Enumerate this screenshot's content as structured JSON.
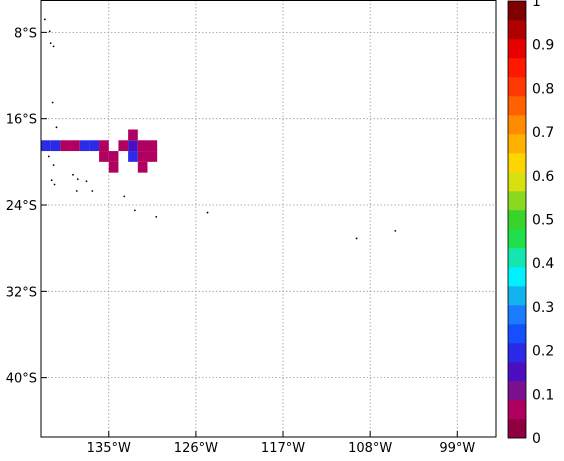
{
  "chart_data": {
    "type": "heatmap",
    "x_axis": {
      "ticks": [
        "135°W",
        "126°W",
        "117°W",
        "108°W",
        "99°W"
      ],
      "values": [
        -135,
        -126,
        -117,
        -108,
        -99
      ],
      "range": [
        -142,
        -95
      ]
    },
    "y_axis": {
      "ticks": [
        "8°S",
        "16°S",
        "24°S",
        "32°S",
        "40°S"
      ],
      "values": [
        -8,
        -16,
        -24,
        -32,
        -40
      ],
      "range": [
        -45.5,
        -5
      ]
    },
    "grid": true,
    "colorbar": {
      "placement": "right",
      "range": [
        0,
        1
      ],
      "tick_labels": [
        "1",
        "0.9",
        "0.8",
        "0.7",
        "0.6",
        "0.5",
        "0.4",
        "0.3",
        "0.2",
        "0.1",
        "0"
      ],
      "tick_values": [
        1,
        0.9,
        0.8,
        0.7,
        0.6,
        0.5,
        0.4,
        0.3,
        0.2,
        0.1,
        0
      ],
      "colors": [
        "#8f0040",
        "#b00060",
        "#7a1090",
        "#4b0fc0",
        "#2b2ae6",
        "#1550ff",
        "#1a7cff",
        "#13b3f0",
        "#00f0ff",
        "#15e6b0",
        "#1fe04a",
        "#38d42a",
        "#8ad820",
        "#d8e010",
        "#ffd400",
        "#ffb000",
        "#ff8c00",
        "#ff6000",
        "#ff3a00",
        "#ff1800",
        "#e60000",
        "#b00000",
        "#800000"
      ]
    },
    "cells": [
      {
        "lon": -141.5,
        "lat": -18.5,
        "value": 0.2
      },
      {
        "lon": -140.5,
        "lat": -18.5,
        "value": 0.2
      },
      {
        "lon": -139.5,
        "lat": -18.5,
        "value": 0.05
      },
      {
        "lon": -138.5,
        "lat": -18.5,
        "value": 0.05
      },
      {
        "lon": -137.5,
        "lat": -18.5,
        "value": 0.2
      },
      {
        "lon": -136.5,
        "lat": -18.5,
        "value": 0.2
      },
      {
        "lon": -135.5,
        "lat": -18.5,
        "value": 0.05
      },
      {
        "lon": -135.5,
        "lat": -19.5,
        "value": 0.05
      },
      {
        "lon": -134.5,
        "lat": -19.5,
        "value": 0.05
      },
      {
        "lon": -134.5,
        "lat": -20.5,
        "value": 0.05
      },
      {
        "lon": -133.5,
        "lat": -18.5,
        "value": 0.05
      },
      {
        "lon": -132.5,
        "lat": -17.5,
        "value": 0.05
      },
      {
        "lon": -132.5,
        "lat": -18.5,
        "value": 0.15
      },
      {
        "lon": -132.5,
        "lat": -19.5,
        "value": 0.2
      },
      {
        "lon": -131.5,
        "lat": -18.5,
        "value": 0.05
      },
      {
        "lon": -131.5,
        "lat": -19.5,
        "value": 0.05
      },
      {
        "lon": -131.5,
        "lat": -20.5,
        "value": 0.05
      },
      {
        "lon": -130.5,
        "lat": -18.5,
        "value": 0.05
      },
      {
        "lon": -130.5,
        "lat": -19.5,
        "value": 0.05
      }
    ],
    "islands": [
      {
        "lon": -141.6,
        "lat": -6.8
      },
      {
        "lon": -141.1,
        "lat": -7.9
      },
      {
        "lon": -141.0,
        "lat": -9.0
      },
      {
        "lon": -140.7,
        "lat": -9.3
      },
      {
        "lon": -140.8,
        "lat": -14.5
      },
      {
        "lon": -140.4,
        "lat": -16.8
      },
      {
        "lon": -141.2,
        "lat": -19.5
      },
      {
        "lon": -140.7,
        "lat": -20.3
      },
      {
        "lon": -140.9,
        "lat": -21.7
      },
      {
        "lon": -140.6,
        "lat": -22.1
      },
      {
        "lon": -138.7,
        "lat": -21.2
      },
      {
        "lon": -138.2,
        "lat": -21.6
      },
      {
        "lon": -137.3,
        "lat": -21.8
      },
      {
        "lon": -138.3,
        "lat": -22.7
      },
      {
        "lon": -136.7,
        "lat": -22.7
      },
      {
        "lon": -133.4,
        "lat": -23.2
      },
      {
        "lon": -132.3,
        "lat": -24.5
      },
      {
        "lon": -130.1,
        "lat": -25.1
      },
      {
        "lon": -124.8,
        "lat": -24.7
      },
      {
        "lon": -109.4,
        "lat": -27.1
      },
      {
        "lon": -105.4,
        "lat": -26.4
      }
    ]
  }
}
